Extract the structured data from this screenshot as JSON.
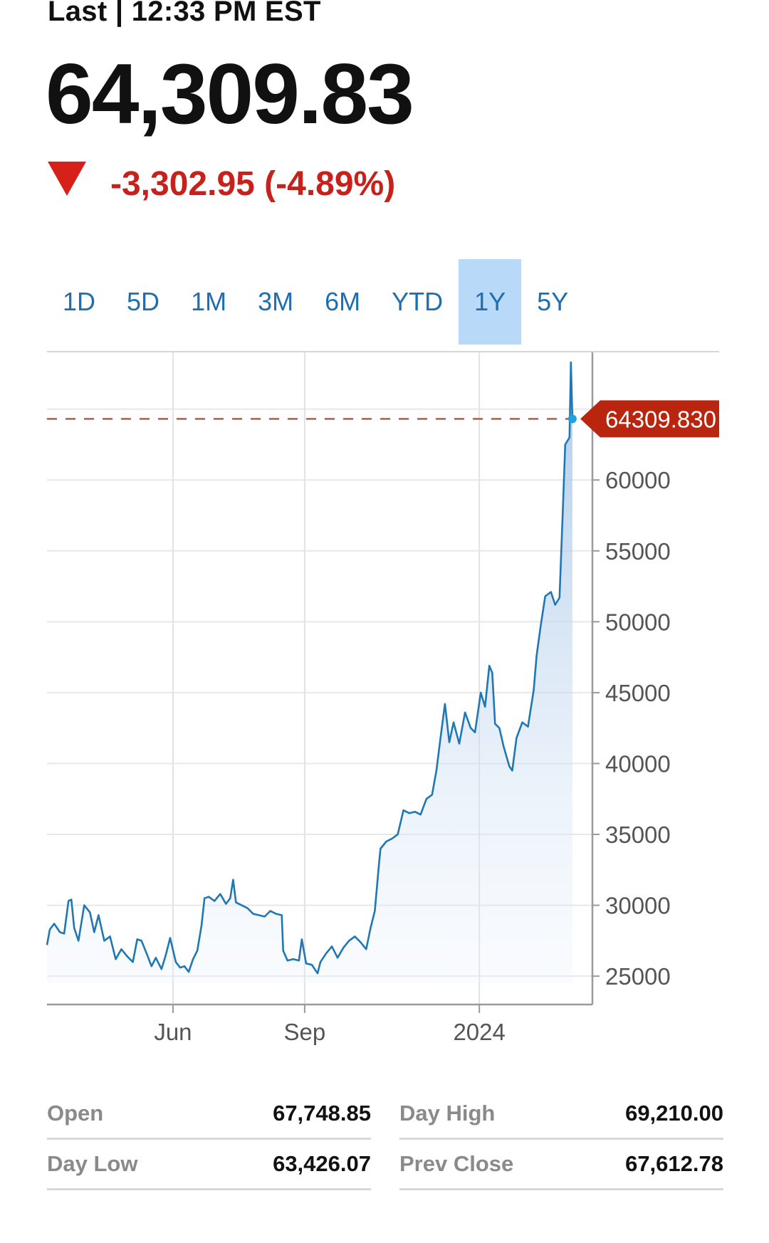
{
  "header": {
    "last_label": "Last | 12:33 PM EST",
    "price": "64,309.83",
    "change": "-3,302.95 (-4.89%)"
  },
  "colors": {
    "down": "#d62118",
    "line": "#1f77b4",
    "tab_active_bg": "#b8d9f8",
    "tab_text": "#1d6fb1",
    "price_tag": "#b9250f"
  },
  "tabs": [
    {
      "label": "1D",
      "active": false
    },
    {
      "label": "5D",
      "active": false
    },
    {
      "label": "1M",
      "active": false
    },
    {
      "label": "3M",
      "active": false
    },
    {
      "label": "6M",
      "active": false
    },
    {
      "label": "YTD",
      "active": false
    },
    {
      "label": "1Y",
      "active": true
    },
    {
      "label": "5Y",
      "active": false
    }
  ],
  "chart_data": {
    "type": "area",
    "current_value_label": "64309.830",
    "current_value": 64309.83,
    "ylim": [
      23000,
      69000
    ],
    "y_ticks": [
      {
        "value": 25000,
        "label": "25000"
      },
      {
        "value": 30000,
        "label": "30000"
      },
      {
        "value": 35000,
        "label": "35000"
      },
      {
        "value": 40000,
        "label": "40000"
      },
      {
        "value": 45000,
        "label": "45000"
      },
      {
        "value": 50000,
        "label": "50000"
      },
      {
        "value": 55000,
        "label": "55000"
      },
      {
        "value": 60000,
        "label": "60000"
      },
      {
        "value": 65000,
        "label": "65000"
      }
    ],
    "x_ticks": [
      {
        "date": "2023-06-01",
        "label": "Jun"
      },
      {
        "date": "2023-09-01",
        "label": "Sep"
      },
      {
        "date": "2024-01-01",
        "label": "2024"
      }
    ],
    "xlim": [
      "2023-03-05",
      "2024-03-20"
    ],
    "grid": true,
    "series": [
      {
        "values": [
          [
            "2023-03-05",
            27200
          ],
          [
            "2023-03-07",
            28300
          ],
          [
            "2023-03-10",
            28700
          ],
          [
            "2023-03-14",
            28100
          ],
          [
            "2023-03-17",
            28000
          ],
          [
            "2023-03-20",
            30300
          ],
          [
            "2023-03-22",
            30400
          ],
          [
            "2023-03-24",
            28400
          ],
          [
            "2023-03-27",
            27500
          ],
          [
            "2023-03-31",
            30000
          ],
          [
            "2023-04-04",
            29500
          ],
          [
            "2023-04-07",
            28100
          ],
          [
            "2023-04-10",
            29300
          ],
          [
            "2023-04-14",
            27500
          ],
          [
            "2023-04-18",
            27800
          ],
          [
            "2023-04-22",
            26200
          ],
          [
            "2023-04-26",
            26900
          ],
          [
            "2023-04-30",
            26400
          ],
          [
            "2023-05-04",
            26000
          ],
          [
            "2023-05-07",
            27600
          ],
          [
            "2023-05-10",
            27500
          ],
          [
            "2023-05-14",
            26500
          ],
          [
            "2023-05-17",
            25700
          ],
          [
            "2023-05-20",
            26300
          ],
          [
            "2023-05-24",
            25500
          ],
          [
            "2023-05-27",
            26500
          ],
          [
            "2023-05-30",
            27700
          ],
          [
            "2023-06-03",
            26000
          ],
          [
            "2023-06-06",
            25600
          ],
          [
            "2023-06-09",
            25700
          ],
          [
            "2023-06-12",
            25300
          ],
          [
            "2023-06-15",
            26200
          ],
          [
            "2023-06-18",
            26800
          ],
          [
            "2023-06-21",
            28600
          ],
          [
            "2023-06-23",
            30500
          ],
          [
            "2023-06-26",
            30600
          ],
          [
            "2023-06-30",
            30300
          ],
          [
            "2023-07-04",
            30800
          ],
          [
            "2023-07-08",
            30100
          ],
          [
            "2023-07-11",
            30500
          ],
          [
            "2023-07-13",
            31800
          ],
          [
            "2023-07-15",
            30200
          ],
          [
            "2023-07-19",
            30000
          ],
          [
            "2023-07-23",
            29800
          ],
          [
            "2023-07-27",
            29400
          ],
          [
            "2023-07-31",
            29300
          ],
          [
            "2023-08-04",
            29200
          ],
          [
            "2023-08-08",
            29600
          ],
          [
            "2023-08-12",
            29400
          ],
          [
            "2023-08-16",
            29300
          ],
          [
            "2023-08-17",
            26800
          ],
          [
            "2023-08-20",
            26100
          ],
          [
            "2023-08-24",
            26200
          ],
          [
            "2023-08-28",
            26100
          ],
          [
            "2023-08-30",
            27600
          ],
          [
            "2023-09-02",
            25900
          ],
          [
            "2023-09-06",
            25800
          ],
          [
            "2023-09-10",
            25200
          ],
          [
            "2023-09-12",
            26000
          ],
          [
            "2023-09-16",
            26600
          ],
          [
            "2023-09-20",
            27100
          ],
          [
            "2023-09-24",
            26300
          ],
          [
            "2023-09-28",
            27000
          ],
          [
            "2023-10-02",
            27500
          ],
          [
            "2023-10-06",
            27800
          ],
          [
            "2023-10-10",
            27400
          ],
          [
            "2023-10-14",
            26900
          ],
          [
            "2023-10-17",
            28400
          ],
          [
            "2023-10-20",
            29600
          ],
          [
            "2023-10-23",
            33000
          ],
          [
            "2023-10-24",
            34000
          ],
          [
            "2023-10-28",
            34500
          ],
          [
            "2023-11-01",
            34700
          ],
          [
            "2023-11-05",
            35000
          ],
          [
            "2023-11-09",
            36700
          ],
          [
            "2023-11-13",
            36500
          ],
          [
            "2023-11-17",
            36600
          ],
          [
            "2023-11-21",
            36400
          ],
          [
            "2023-11-25",
            37500
          ],
          [
            "2023-11-29",
            37800
          ],
          [
            "2023-12-02",
            39500
          ],
          [
            "2023-12-05",
            41900
          ],
          [
            "2023-12-08",
            44200
          ],
          [
            "2023-12-11",
            41500
          ],
          [
            "2023-12-14",
            42900
          ],
          [
            "2023-12-18",
            41400
          ],
          [
            "2023-12-22",
            43600
          ],
          [
            "2023-12-26",
            42500
          ],
          [
            "2023-12-29",
            42200
          ],
          [
            "2024-01-02",
            45000
          ],
          [
            "2024-01-05",
            44000
          ],
          [
            "2024-01-08",
            46900
          ],
          [
            "2024-01-10",
            46400
          ],
          [
            "2024-01-12",
            42800
          ],
          [
            "2024-01-15",
            42500
          ],
          [
            "2024-01-18",
            41200
          ],
          [
            "2024-01-22",
            39800
          ],
          [
            "2024-01-24",
            39500
          ],
          [
            "2024-01-27",
            41800
          ],
          [
            "2024-01-31",
            42900
          ],
          [
            "2024-02-04",
            42600
          ],
          [
            "2024-02-08",
            45200
          ],
          [
            "2024-02-10",
            47600
          ],
          [
            "2024-02-13",
            49800
          ],
          [
            "2024-02-16",
            51800
          ],
          [
            "2024-02-20",
            52100
          ],
          [
            "2024-02-23",
            51200
          ],
          [
            "2024-02-26",
            51700
          ],
          [
            "2024-02-28",
            57000
          ],
          [
            "2024-03-01",
            62500
          ],
          [
            "2024-03-04",
            63000
          ],
          [
            "2024-03-05",
            68300
          ],
          [
            "2024-03-06",
            64300
          ]
        ]
      }
    ]
  },
  "stats": [
    {
      "label": "Open",
      "value": "67,748.85"
    },
    {
      "label": "Day High",
      "value": "69,210.00"
    },
    {
      "label": "Day Low",
      "value": "63,426.07"
    },
    {
      "label": "Prev Close",
      "value": "67,612.78"
    }
  ]
}
